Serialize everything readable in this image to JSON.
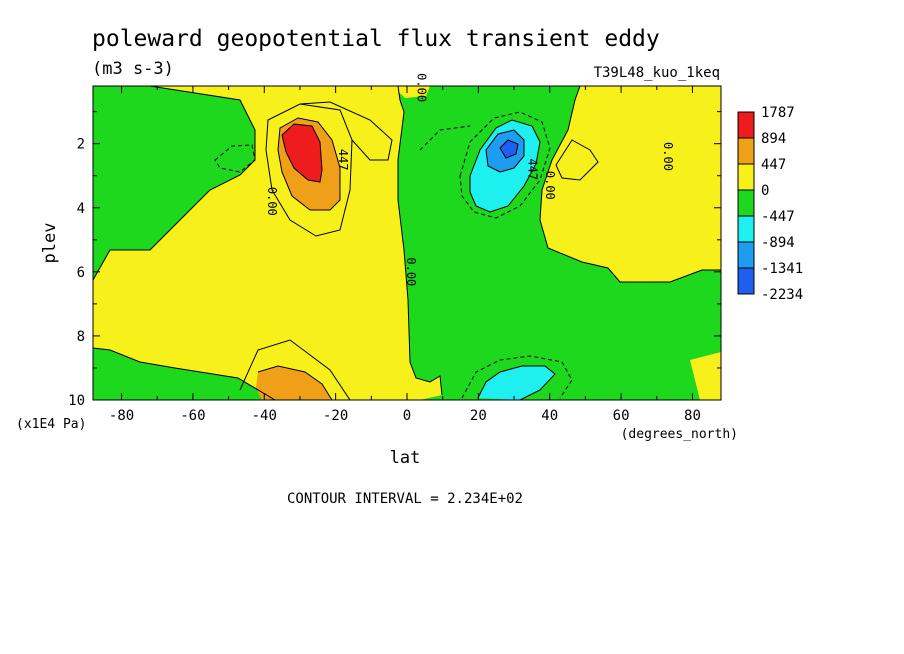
{
  "chart_data": {
    "type": "heatmap",
    "title": "poleward geopotential flux transient eddy",
    "units": "(m3 s-3)",
    "run_label": "T39L48_kuo_1keq",
    "xlabel": "lat",
    "xunits": "(degrees_north)",
    "ylabel": "plev",
    "yunits": "(x1E4 Pa)",
    "footer": "CONTOUR INTERVAL = 2.234E+02",
    "xlim": [
      -88,
      88
    ],
    "ylim": [
      10,
      0.2
    ],
    "x_ticks": [
      "-80",
      "-60",
      "-40",
      "-20",
      "0",
      "20",
      "40",
      "60",
      "80"
    ],
    "y_ticks": [
      "2",
      "4",
      "6",
      "8",
      "10"
    ],
    "colorbar": {
      "labels": [
        "1787",
        "894",
        "447",
        "0",
        "-447",
        "-894",
        "-1341",
        "-2234"
      ],
      "colors": [
        "#ee1c1c",
        "#f0a018",
        "#f7f01a",
        "#1ed81e",
        "#1ef0f0",
        "#1e9cf0",
        "#1e5ff0"
      ]
    },
    "contour_labels": [
      {
        "text": "0.00",
        "lat": 3,
        "plev": 0.25
      },
      {
        "text": "447",
        "lat": -19,
        "plev": 2.5
      },
      {
        "text": "0.00",
        "lat": -39,
        "plev": 3.8
      },
      {
        "text": "0.00",
        "lat": 0,
        "plev": 6.0
      },
      {
        "text": "447",
        "lat": 34,
        "plev": 2.8
      },
      {
        "text": "0.00",
        "lat": 39,
        "plev": 3.3
      },
      {
        "text": "0.00",
        "lat": 72,
        "plev": 2.4
      }
    ],
    "features": [
      {
        "name": "positive max",
        "lat": -30,
        "plev": 2.0,
        "value": 1787
      },
      {
        "name": "negative min",
        "lat": 29,
        "plev": 2.0,
        "value": -1341
      },
      {
        "name": "low-level positive",
        "lat": -28,
        "plev": 9.5,
        "value": 447
      },
      {
        "name": "low-level negative",
        "lat": 32,
        "plev": 9.6,
        "value": -447
      }
    ]
  }
}
